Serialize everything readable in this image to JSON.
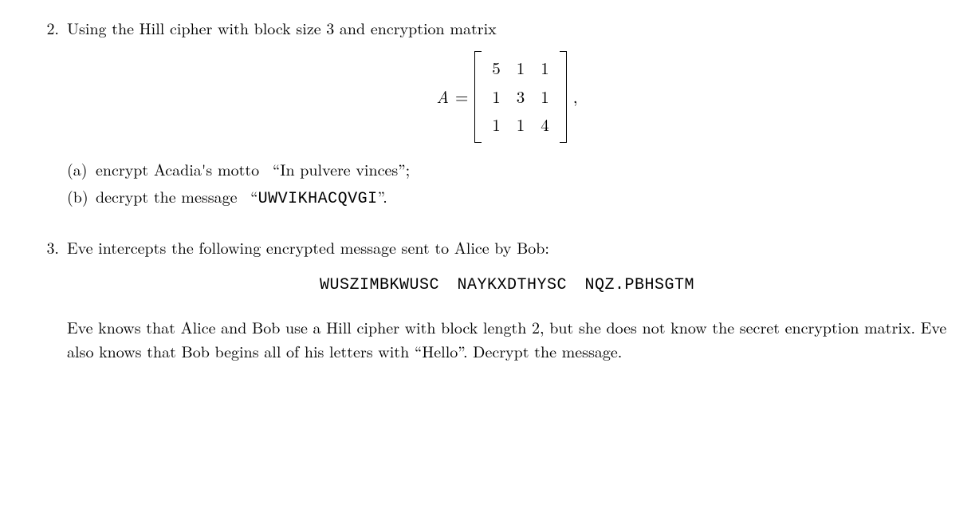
{
  "q2": {
    "number": "2.",
    "intro": "Using the Hill cipher with block size 3 and encryption matrix",
    "eq_lhs": "A",
    "eq_eq": "=",
    "matrix": {
      "rows": [
        [
          "5",
          "1",
          "1"
        ],
        [
          "1",
          "3",
          "1"
        ],
        [
          "1",
          "1",
          "4"
        ]
      ]
    },
    "eq_tail": ",",
    "a": {
      "label": "(a)",
      "text_pre": "encrypt Acadia's motto  “",
      "quote": "In pulvere vinces",
      "text_post": "”;"
    },
    "b": {
      "label": "(b)",
      "text_pre": "decrypt the message  “",
      "code": "UWVIKHACQVGI",
      "text_post": "”."
    }
  },
  "q3": {
    "number": "3.",
    "intro": "Eve intercepts the following encrypted message sent to Alice by Bob:",
    "cipher": "WUSZIMBKWUSC NAYKXDTHYSC NQZ.PBHSGTM",
    "body": "Eve knows that Alice and Bob use a Hill cipher with block length 2, but she does not know the secret encryption matrix. Eve also knows that Bob begins all of his letters with “Hello”. Decrypt the message."
  }
}
